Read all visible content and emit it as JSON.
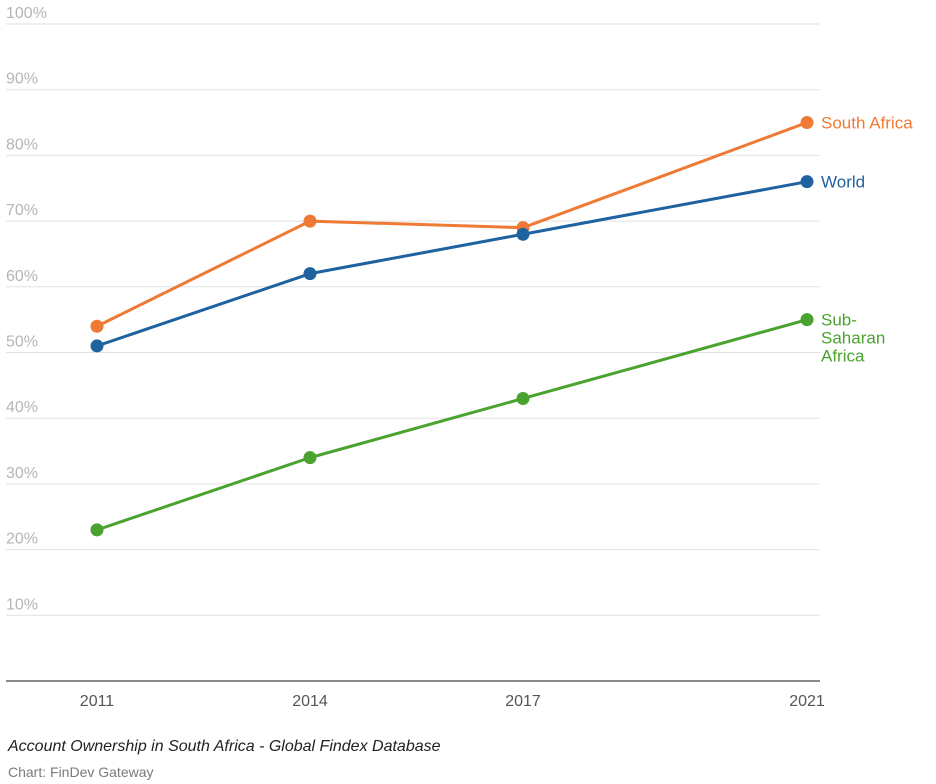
{
  "chart_data": {
    "type": "line",
    "title": "Account Ownership in South Africa - Global Findex Database",
    "source": "Chart: FinDev Gateway",
    "x": [
      "2011",
      "2014",
      "2017",
      "2021"
    ],
    "ylim": [
      0,
      100
    ],
    "yticks": [
      10,
      20,
      30,
      40,
      50,
      60,
      70,
      80,
      90,
      100
    ],
    "ytick_labels": [
      "10%",
      "20%",
      "30%",
      "40%",
      "50%",
      "60%",
      "70%",
      "80%",
      "90%",
      "100%"
    ],
    "grid": true,
    "series": [
      {
        "name": "South Africa",
        "label_lines": [
          "South Africa"
        ],
        "color": "#ee7a35",
        "values": [
          54,
          70,
          69,
          85
        ]
      },
      {
        "name": "World",
        "label_lines": [
          "World"
        ],
        "color": "#1f62a0",
        "values": [
          51,
          62,
          68,
          76
        ]
      },
      {
        "name": "Sub-Saharan Africa",
        "label_lines": [
          "Sub-",
          "Saharan",
          "Africa"
        ],
        "color": "#4aa22f",
        "values": [
          23,
          34,
          43,
          55
        ]
      }
    ]
  }
}
